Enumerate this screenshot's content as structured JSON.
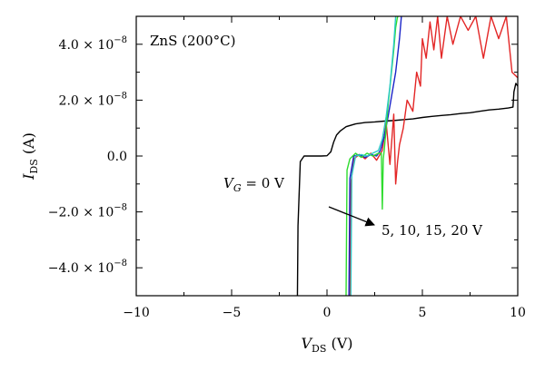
{
  "chart_data": {
    "type": "line",
    "title": "",
    "xlabel_main": "V",
    "xlabel_sub": "DS",
    "xlabel_unit": " (V)",
    "ylabel_main": "I",
    "ylabel_sub": "DS",
    "ylabel_unit": " (A)",
    "xlim": [
      -10,
      10
    ],
    "ylim": [
      -5e-08,
      5e-08
    ],
    "grid": false,
    "x_ticks": [
      -10,
      -5,
      0,
      5,
      10
    ],
    "x_tick_labels": [
      "−10",
      "−5",
      "0",
      "5",
      "10"
    ],
    "y_ticks": [
      4e-08,
      2e-08,
      0,
      -2e-08,
      -4e-08
    ],
    "y_tick_labels": [
      "4.0 × 10",
      "2.0 × 10",
      "0.0",
      "−2.0 × 10",
      "−4.0 × 10"
    ],
    "y_tick_exponent": "−8",
    "annotations": {
      "material": "ZnS (200°C)",
      "vg0_main": "V",
      "vg0_sub": "G",
      "vg0_rest": " = 0 V",
      "vg_list": "5, 10, 15, 20 V"
    },
    "series": [
      {
        "name": "V_G = 0 V",
        "color": "#000000",
        "x": [
          -1.55,
          -1.52,
          -1.4,
          -1.2,
          -1.0,
          -0.7,
          -0.3,
          0.0,
          0.2,
          0.35,
          0.5,
          0.7,
          1.0,
          1.5,
          2.0,
          2.5,
          3.0,
          3.5,
          4.0,
          4.5,
          5.0,
          5.5,
          6.0,
          6.5,
          7.0,
          7.5,
          8.0,
          8.5,
          9.0,
          9.5,
          9.75,
          9.8,
          9.9,
          10.0
        ],
        "y": [
          -5e-08,
          -2.5e-08,
          -2e-09,
          0,
          0,
          0,
          0,
          1e-10,
          1.5e-09,
          5e-09,
          7.5e-09,
          9e-09,
          1.05e-08,
          1.15e-08,
          1.2e-08,
          1.22e-08,
          1.25e-08,
          1.27e-08,
          1.3e-08,
          1.33e-08,
          1.38e-08,
          1.42e-08,
          1.45e-08,
          1.48e-08,
          1.52e-08,
          1.55e-08,
          1.6e-08,
          1.65e-08,
          1.68e-08,
          1.72e-08,
          1.75e-08,
          2.3e-08,
          2.6e-08,
          2.5e-08
        ]
      },
      {
        "name": "V_G = 5 V",
        "color": "#e32626",
        "x": [
          1.2,
          1.25,
          1.4,
          1.7,
          2.0,
          2.3,
          2.6,
          2.9,
          3.1,
          3.3,
          3.5,
          3.6,
          3.7,
          3.8,
          4.0,
          4.2,
          4.5,
          4.7,
          4.9,
          5.0,
          5.2,
          5.4,
          5.6,
          5.8,
          6.0,
          6.3,
          6.6,
          7.0,
          7.4,
          7.8,
          8.2,
          8.6,
          9.0,
          9.4,
          9.7,
          10.0
        ],
        "y": [
          -5e-08,
          -1e-08,
          -1e-09,
          5e-10,
          -1e-09,
          1e-09,
          -1.5e-09,
          2e-09,
          1.2e-08,
          -3e-09,
          1.5e-08,
          -1e-08,
          -2e-09,
          4e-09,
          1e-08,
          2e-08,
          1.6e-08,
          3e-08,
          2.5e-08,
          4.2e-08,
          3.5e-08,
          4.8e-08,
          3.8e-08,
          5e-08,
          3.5e-08,
          5e-08,
          4e-08,
          5e-08,
          4.5e-08,
          5e-08,
          3.5e-08,
          5e-08,
          4.2e-08,
          5e-08,
          3e-08,
          2.8e-08
        ]
      },
      {
        "name": "V_G = 10 V",
        "color": "#1a24c8",
        "x": [
          1.15,
          1.2,
          1.4,
          1.7,
          2.0,
          2.3,
          2.6,
          2.8,
          3.0,
          3.2,
          3.4,
          3.6,
          3.8,
          3.9
        ],
        "y": [
          -5e-08,
          -8e-09,
          0,
          5e-10,
          -5e-10,
          5e-10,
          0,
          2e-09,
          7e-09,
          1.4e-08,
          2.2e-08,
          3e-08,
          4.2e-08,
          5e-08
        ]
      },
      {
        "name": "V_G = 15 V",
        "color": "#2edc2e",
        "x": [
          1.0,
          1.05,
          1.2,
          1.5,
          1.8,
          2.1,
          2.4,
          2.7,
          2.85,
          2.9,
          2.95,
          3.0,
          3.1,
          3.2,
          3.35,
          3.5,
          3.6,
          3.7,
          3.75
        ],
        "y": [
          -5e-08,
          -5e-09,
          -1e-09,
          1e-09,
          -5e-10,
          1e-09,
          0,
          1e-09,
          1e-09,
          -1.9e-08,
          -1e-09,
          2e-09,
          1e-08,
          1.8e-08,
          2.8e-08,
          3.8e-08,
          4.6e-08,
          5e-08,
          5e-08
        ]
      },
      {
        "name": "V_G = 20 V",
        "color": "#2cc8c8",
        "x": [
          1.25,
          1.3,
          1.5,
          1.8,
          2.1,
          2.4,
          2.7,
          2.9,
          3.1,
          3.3,
          3.5,
          3.6
        ],
        "y": [
          -5e-08,
          -7e-09,
          0,
          5e-10,
          0,
          1e-09,
          2e-09,
          6e-09,
          1.4e-08,
          2.5e-08,
          4e-08,
          5e-08
        ]
      }
    ]
  }
}
